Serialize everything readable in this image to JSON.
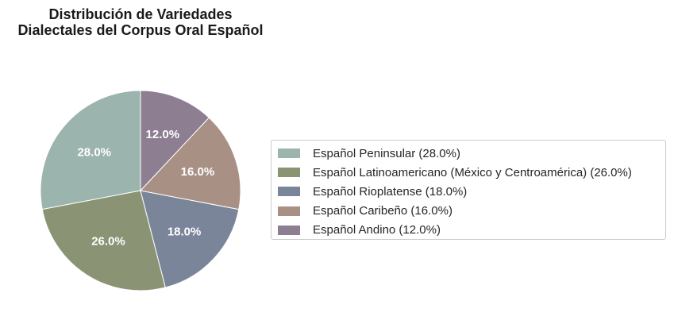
{
  "chart_data": {
    "type": "pie",
    "title_lines": [
      "Distribución de Variedades",
      "Dialectales del Corpus Oral Español"
    ],
    "slices": [
      {
        "label": "Español Peninsular (28.0%)",
        "value": 28.0,
        "pct_label": "28.0%",
        "color": "#9bb4ad"
      },
      {
        "label": "Español Latinoamericano (México y Centroamérica) (26.0%)",
        "value": 26.0,
        "pct_label": "26.0%",
        "color": "#8a9474"
      },
      {
        "label": "Español Rioplatense (18.0%)",
        "value": 18.0,
        "pct_label": "18.0%",
        "color": "#7b859a"
      },
      {
        "label": "Español Caribeño (16.0%)",
        "value": 16.0,
        "pct_label": "16.0%",
        "color": "#a89184"
      },
      {
        "label": "Español Andino (12.0%)",
        "value": 12.0,
        "pct_label": "12.0%",
        "color": "#8d7e91"
      }
    ],
    "start_angle_deg": 90,
    "direction": "counterclockwise",
    "legend_position": "right"
  }
}
